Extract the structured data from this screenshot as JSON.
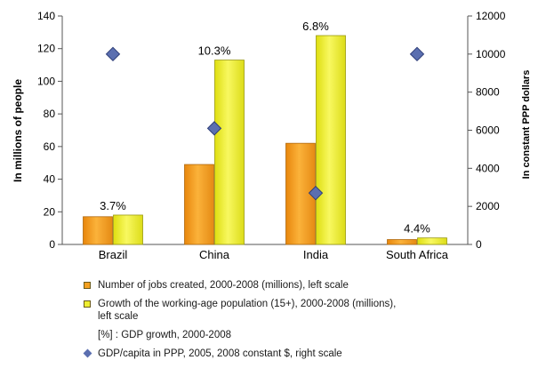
{
  "chart_data": {
    "type": "bar",
    "categories": [
      "Brazil",
      "China",
      "India",
      "South Africa"
    ],
    "series": [
      {
        "name": "Number of jobs created, 2000-2008 (millions), left scale",
        "values": [
          17,
          49,
          62,
          3
        ],
        "axis": "left",
        "color": "#f4a020"
      },
      {
        "name": "Growth of the working-age population (15+), 2000-2008 (millions), left scale",
        "values": [
          18,
          113,
          128,
          4
        ],
        "axis": "left",
        "color": "#eeee30"
      },
      {
        "name": "GDP/capita in PPP, 2005, 2008 constant $, right scale",
        "type": "scatter",
        "values": [
          10000,
          6100,
          2700,
          10000
        ],
        "axis": "right",
        "color": "#5b6fb0"
      }
    ],
    "gdp_growth_labels": [
      "3.7%",
      "10.3%",
      "6.8%",
      "4.4%"
    ],
    "ylabel": "In millions of people",
    "y2label": "In constant PPP dollars",
    "ylim": [
      0,
      140
    ],
    "y2lim": [
      0,
      12000
    ],
    "yticks": [
      0,
      20,
      40,
      60,
      80,
      100,
      120,
      140
    ],
    "y2ticks": [
      0,
      2000,
      4000,
      6000,
      8000,
      10000,
      12000
    ],
    "grid": false
  },
  "legend": {
    "jobs": "Number of jobs created, 2000-2008 (millions), left scale",
    "pop_line1": "Growth of the working-age population (15+), 2000-2008 (millions),",
    "pop_line2": "left scale",
    "gdp_growth": "[%] : GDP growth, 2000-2008",
    "gdp_capita": "GDP/capita in PPP, 2005, 2008 constant $, right scale"
  }
}
